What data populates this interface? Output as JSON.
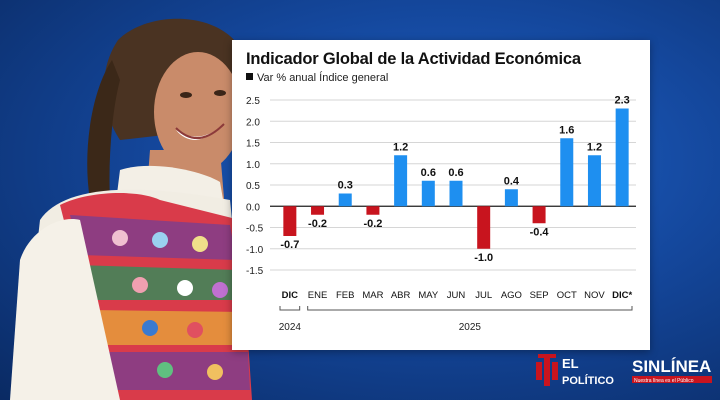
{
  "chart_data": {
    "type": "bar",
    "title": "Indicador Global de la Actividad Económica",
    "subtitle": "Var % anual Índice general",
    "categories": [
      "DIC",
      "ENE",
      "FEB",
      "MAR",
      "ABR",
      "MAY",
      "JUN",
      "JUL",
      "AGO",
      "SEP",
      "OCT",
      "NOV",
      "DIC*"
    ],
    "values": [
      -0.7,
      -0.2,
      0.3,
      -0.2,
      1.2,
      0.6,
      0.6,
      -1.0,
      0.4,
      -0.4,
      1.6,
      1.2,
      2.3
    ],
    "value_labels": [
      "-0.7",
      "-0.2",
      "0.3",
      "-0.2",
      "1.2",
      "0.6",
      "0.6",
      "-1.0",
      "0.4",
      "-0.4",
      "1.6",
      "1.2",
      "2.3"
    ],
    "bold_categories": [
      "DIC",
      "DIC*"
    ],
    "yticks": [
      "2.5",
      "2.0",
      "1.5",
      "1.0",
      "0.5",
      "0.0",
      "-0.5",
      "-1.0",
      "-1.5"
    ],
    "ytick_values": [
      2.5,
      2.0,
      1.5,
      1.0,
      0.5,
      0.0,
      -0.5,
      -1.0,
      -1.5
    ],
    "ylim": [
      -1.5,
      2.5
    ],
    "grid": true,
    "colors": {
      "positive": "#1e8ff0",
      "negative": "#c8141e"
    },
    "year_groups": [
      {
        "label": "2024",
        "from": 0,
        "to": 0
      },
      {
        "label": "2025",
        "from": 1,
        "to": 12
      }
    ]
  },
  "logos": {
    "el_politico": {
      "line1": "EL",
      "line2": "POLÍTICO",
      "color": "#c8141e"
    },
    "sinlinea": {
      "text": "SINLÍNEA",
      "tagline": "Nuestra línea es el Público"
    }
  }
}
